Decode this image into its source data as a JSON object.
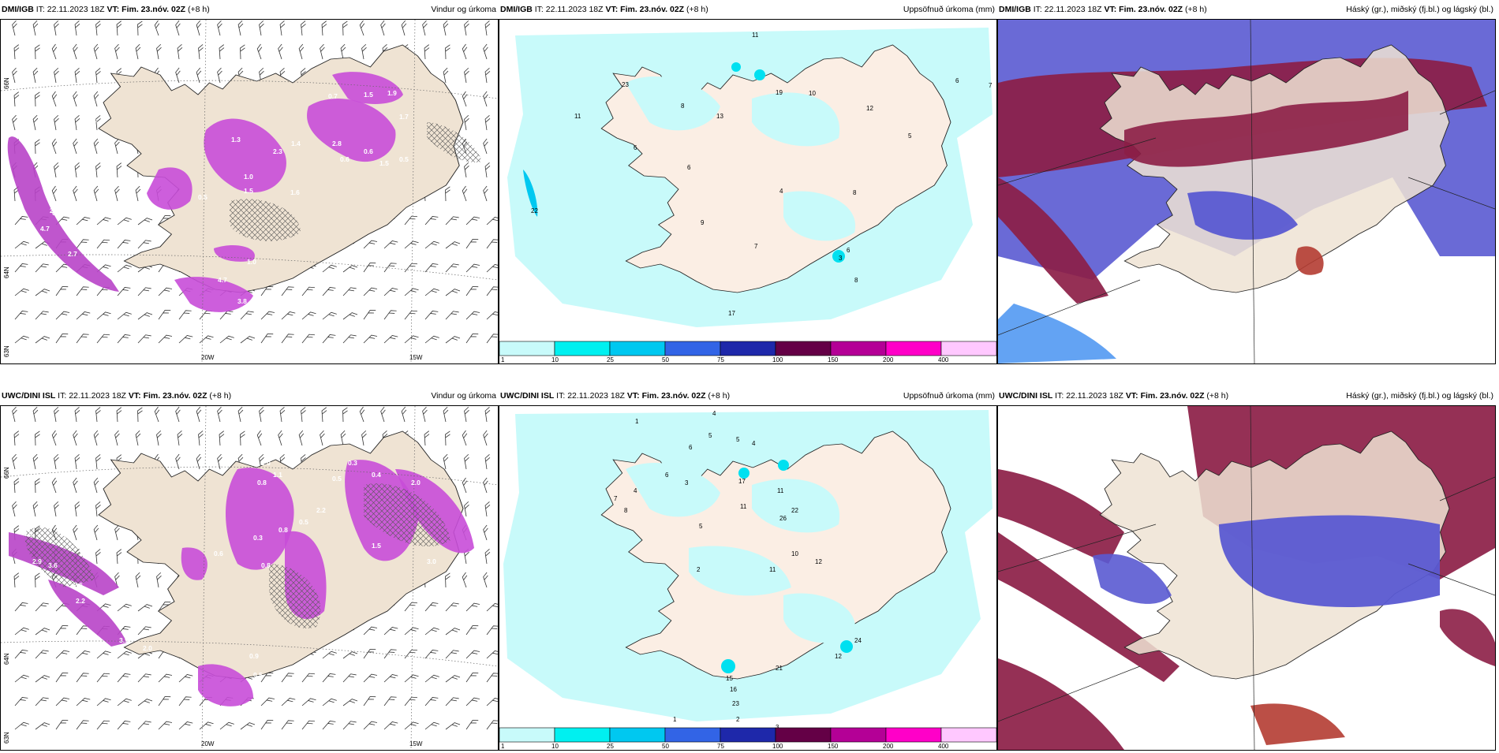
{
  "panels": [
    {
      "model": "DMI/IGB",
      "it_label": "IT:",
      "it": "22.11.2023 18Z",
      "vt_label": "VT:",
      "vt": "Fim. 23.nóv. 02Z",
      "lead": "(+8 h)",
      "right": "Vindur og úrkoma"
    },
    {
      "model": "DMI/IGB",
      "it_label": "IT:",
      "it": "22.11.2023 18Z",
      "vt_label": "VT:",
      "vt": "Fim. 23.nóv. 02Z",
      "lead": "(+8 h)",
      "right": "Uppsöfnuð úrkoma (mm)"
    },
    {
      "model": "DMI/IGB",
      "it_label": "IT:",
      "it": "22.11.2023 18Z",
      "vt_label": "VT:",
      "vt": "Fim. 23.nóv. 02Z",
      "lead": "(+8 h)",
      "right": "Háský (gr.), miðský (fj.bl.) og lágský (bl.)"
    },
    {
      "model": "UWC/DINI ISL",
      "it_label": "IT:",
      "it": "22.11.2023 18Z",
      "vt_label": "VT:",
      "vt": "Fim. 23.nóv. 02Z",
      "lead": "(+8 h)",
      "right": "Vindur og úrkoma"
    },
    {
      "model": "UWC/DINI ISL",
      "it_label": "IT:",
      "it": "22.11.2023 18Z",
      "vt_label": "VT:",
      "vt": "Fim. 23.nóv. 02Z",
      "lead": "(+8 h)",
      "right": "Uppsöfnuð úrkoma (mm)"
    },
    {
      "model": "UWC/DINI ISL",
      "it_label": "IT:",
      "it": "22.11.2023 18Z",
      "vt_label": "VT:",
      "vt": "Fim. 23.nóv. 02Z",
      "lead": "(+8 h)",
      "right": "Háský (gr.), miðský (fj.bl.) og lágský (bl.)"
    }
  ],
  "axis_labels": {
    "lat66": "66N",
    "lat64": "64N",
    "lat63": "63N",
    "lon20": "20W",
    "lon15": "15W"
  },
  "colorbar": {
    "ticks": [
      "1",
      "10",
      "25",
      "50",
      "75",
      "100",
      "150",
      "200",
      "400"
    ],
    "colors": [
      "#c8fafa",
      "#00f0f0",
      "#00c8f0",
      "#3264e6",
      "#1e28aa",
      "#640046",
      "#b40096",
      "#ff00c8",
      "#ffc8ff"
    ]
  },
  "precip_labels_top": [
    "0.7",
    "1.5",
    "1.9",
    "1.7",
    "2.3",
    "1.3",
    "0.5",
    "2.8",
    "1.5",
    "0.6",
    "1.4",
    "1.0",
    "1.5",
    "1.6",
    "0.2",
    "4.7",
    "2.7",
    "2.5",
    "1.0",
    "4.7",
    "3.8",
    "0.6",
    "0.5",
    "0.1"
  ],
  "precip_labels_bottom": [
    "0.3",
    "0.4",
    "2.0",
    "0.5",
    "1.0",
    "1.1",
    "0.8",
    "0.3",
    "0.5",
    "2.2",
    "1.5",
    "0.8",
    "4.0",
    "2.9",
    "3.6",
    "2.6",
    "2.2",
    "3.9",
    "2.0",
    "0.6",
    "0.5",
    "0.9",
    "3.0",
    "0.8"
  ],
  "accum_labels_top": [
    "11",
    "6",
    "7",
    "23",
    "11",
    "8",
    "13",
    "19",
    "10",
    "12",
    "5",
    "6",
    "6",
    "9",
    "22",
    "4",
    "7",
    "8",
    "6",
    "3",
    "17",
    "8"
  ],
  "accum_labels_bottom": [
    "1",
    "4",
    "5",
    "6",
    "5",
    "4",
    "3",
    "6",
    "4",
    "5",
    "8",
    "7",
    "2",
    "11",
    "17",
    "11",
    "22",
    "10",
    "12",
    "26",
    "11",
    "15",
    "16",
    "23",
    "21",
    "12",
    "24",
    "3",
    "2",
    "1"
  ]
}
